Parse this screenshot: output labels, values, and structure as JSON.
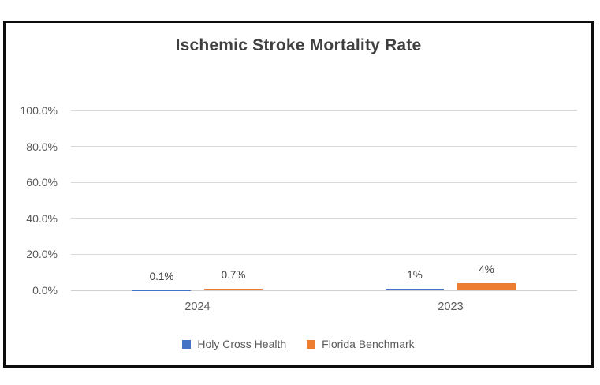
{
  "figure": {
    "background": "#ffffff",
    "border_color": "#0d0d0d"
  },
  "chart_data": {
    "type": "bar",
    "title": "Ischemic Stroke Mortality Rate",
    "categories": [
      "2024",
      "2023"
    ],
    "series": [
      {
        "name": "Holy Cross Health",
        "color": "#4472C4",
        "values": [
          0.1,
          1.0
        ],
        "data_labels": [
          "0.1%",
          "1%"
        ]
      },
      {
        "name": "Florida Benchmark",
        "color": "#ED7D31",
        "values": [
          0.7,
          4.0
        ],
        "data_labels": [
          "0.7%",
          "4%"
        ]
      }
    ],
    "y_axis": {
      "min": 0,
      "max": 100,
      "tick_values": [
        0,
        20,
        40,
        60,
        80,
        100
      ],
      "tick_labels": [
        "0.0%",
        "20.0%",
        "40.0%",
        "60.0%",
        "80.0%",
        "100.0%"
      ]
    },
    "x_axis": {
      "tick_labels": [
        "2024",
        "2023"
      ]
    },
    "grid": true,
    "legend_position": "bottom",
    "colors": {
      "gridline": "#D9D9D9",
      "axis_line": "#CFCFCF",
      "title_text": "#404040",
      "axis_text": "#595959",
      "data_label_text": "#404040",
      "legend_text": "#595959"
    }
  }
}
